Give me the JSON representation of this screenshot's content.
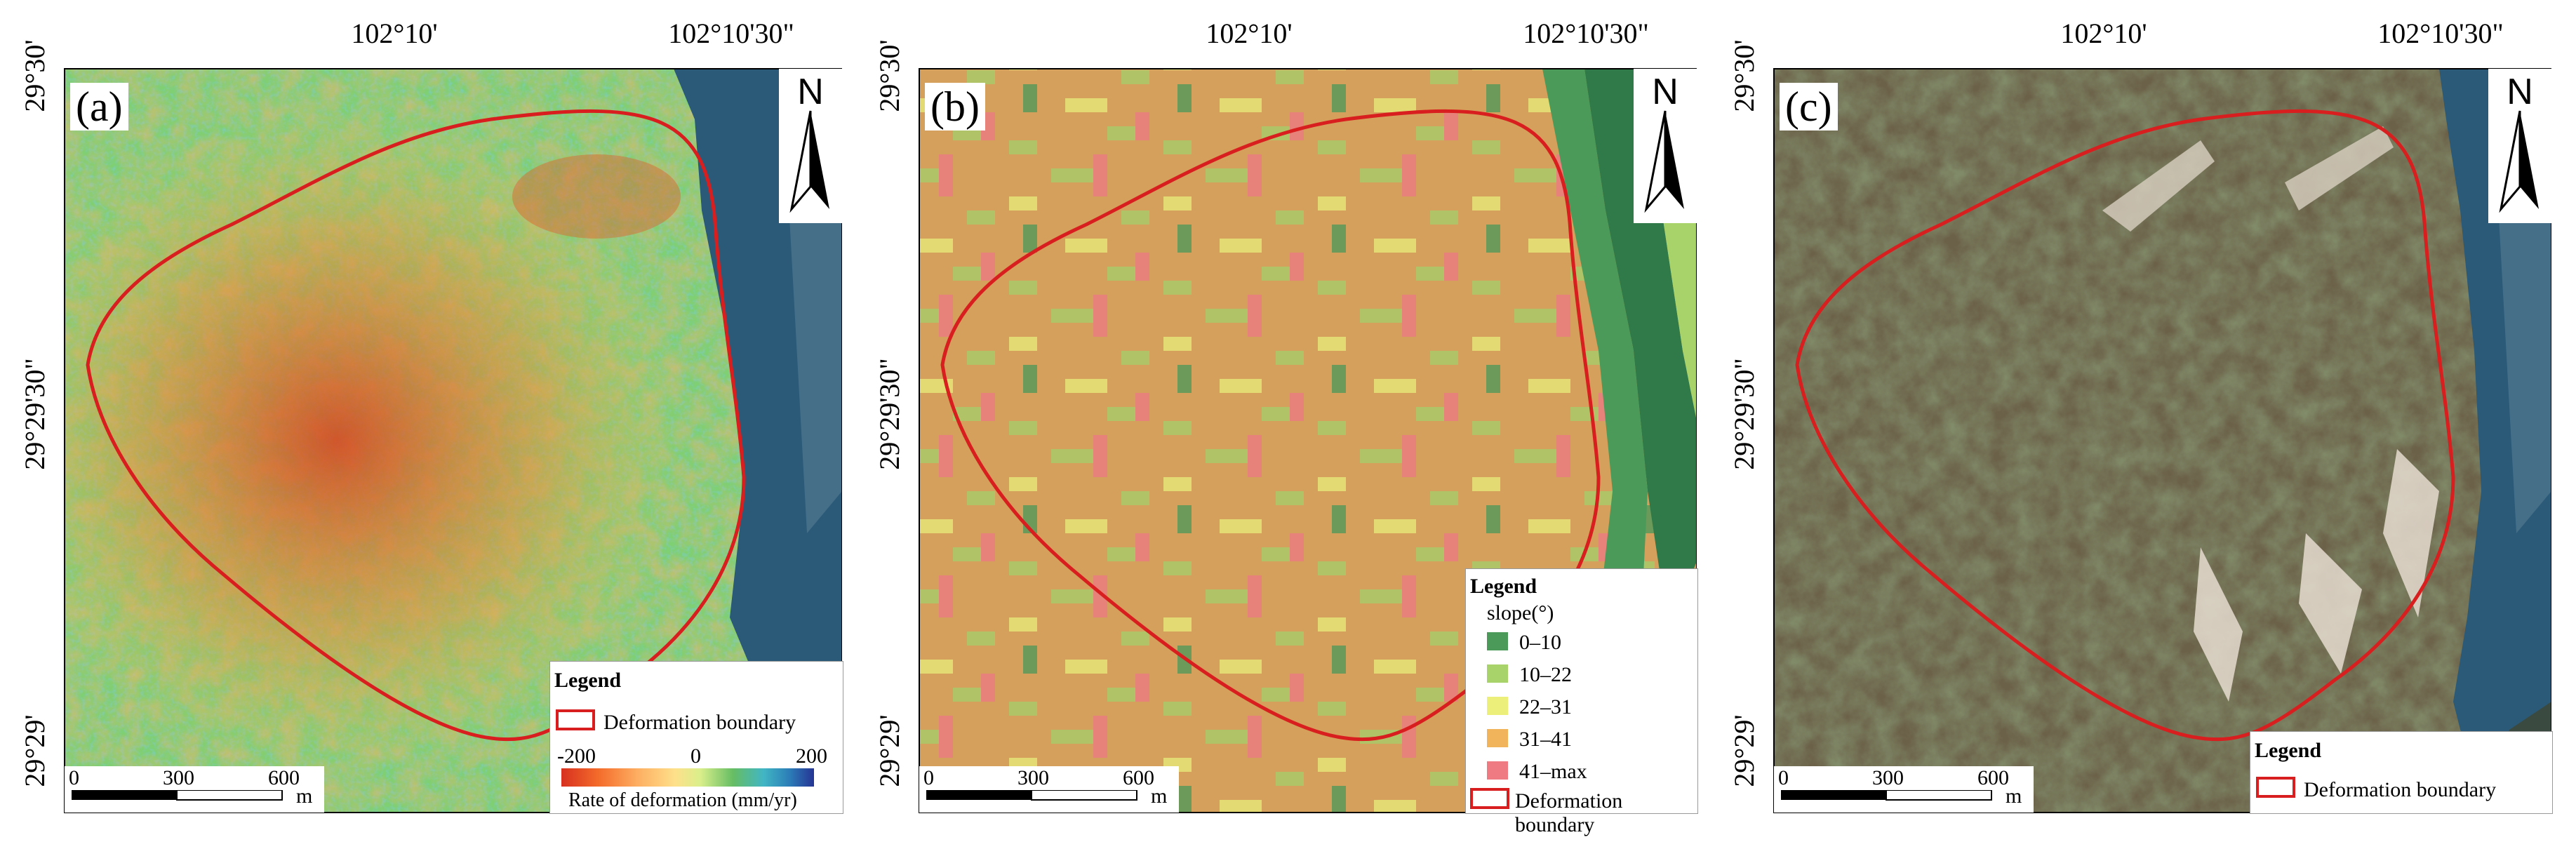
{
  "panels": [
    {
      "id": "a",
      "label": "(a)",
      "x_ticks": [
        "102°10'",
        "102°10'30\""
      ],
      "y_ticks": [
        "29°30'",
        "29°29'30\"",
        "29°29'"
      ],
      "north_label": "N",
      "scale_bar": {
        "ticks": [
          "0",
          "300",
          "600"
        ],
        "unit": "m"
      },
      "legend": {
        "title": "Legend",
        "items": [
          {
            "label": "Deformation boundary",
            "color": "#d81e1e"
          }
        ],
        "colorbar": {
          "ticks": [
            "-200",
            "0",
            "200"
          ],
          "label": "Rate of deformation (mm/yr)",
          "range": [
            -200,
            200
          ],
          "colors": [
            "#d7301f",
            "#f46d2b",
            "#fdae61",
            "#fee08b",
            "#d9ef8b",
            "#66bd63",
            "#41b6c4",
            "#2c7fb8",
            "#253494"
          ]
        }
      }
    },
    {
      "id": "b",
      "label": "(b)",
      "x_ticks": [
        "102°10'",
        "102°10'30\""
      ],
      "y_ticks": [
        "29°30'",
        "29°29'30\"",
        "29°29'"
      ],
      "north_label": "N",
      "scale_bar": {
        "ticks": [
          "0",
          "300",
          "600"
        ],
        "unit": "m"
      },
      "legend": {
        "title": "Legend",
        "subtitle": "slope(°)",
        "classes": [
          {
            "label": "0–10",
            "color": "#4c9a5a"
          },
          {
            "label": "10–22",
            "color": "#a8d26a"
          },
          {
            "label": "22–31",
            "color": "#ecef7a"
          },
          {
            "label": "31–41",
            "color": "#f2b45a"
          },
          {
            "label": "41–max",
            "color": "#f07a82"
          }
        ],
        "items": [
          {
            "label": "Deformation boundary",
            "color": "#d81e1e"
          }
        ]
      }
    },
    {
      "id": "c",
      "label": "(c)",
      "x_ticks": [
        "102°10'",
        "102°10'30\""
      ],
      "y_ticks": [
        "29°30'",
        "29°29'30\"",
        "29°29'"
      ],
      "north_label": "N",
      "scale_bar": {
        "ticks": [
          "0",
          "300",
          "600"
        ],
        "unit": "m"
      },
      "legend": {
        "title": "Legend",
        "items": [
          {
            "label": "Deformation boundary",
            "color": "#d81e1e"
          }
        ]
      }
    }
  ],
  "colors": {
    "boundary": "#d81e1e",
    "river": "#2a5a78",
    "deformation_base": "#7fcf73",
    "slope_base": "#d8a25a",
    "imagery_base": "#6b6048"
  }
}
